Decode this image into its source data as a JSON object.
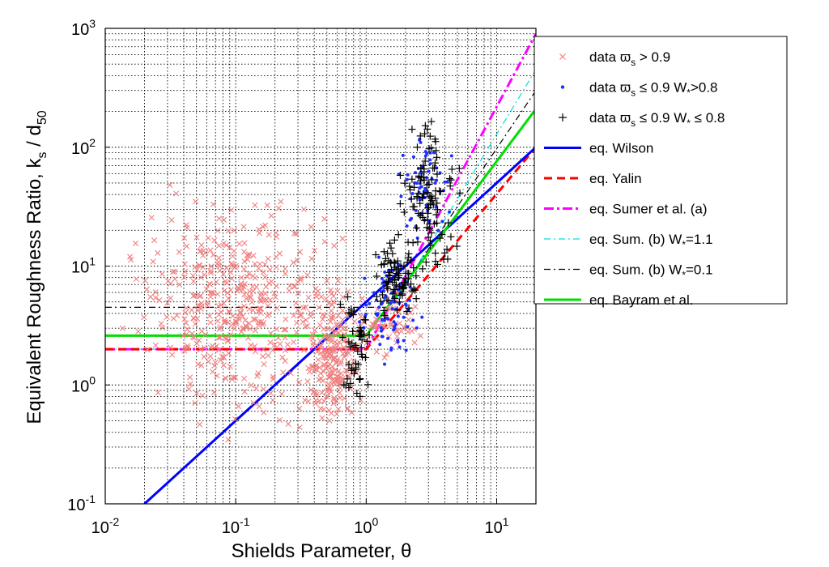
{
  "chart_data": {
    "type": "scatter",
    "x_axis": {
      "label_main": "Shields Parameter, ",
      "label_symbol": "θ",
      "scale": "log",
      "range": [
        0.01,
        20
      ],
      "ticks": [
        {
          "base": "10",
          "exp": "-2",
          "value": 0.01
        },
        {
          "base": "10",
          "exp": "-1",
          "value": 0.1
        },
        {
          "base": "10",
          "exp": "0",
          "value": 1
        },
        {
          "base": "10",
          "exp": "1",
          "value": 10
        }
      ]
    },
    "y_axis": {
      "label_main": "Equivalent Roughness Ratio, k",
      "label_sub1": "s",
      "label_mid": " / d",
      "label_sub2": "50",
      "scale": "log",
      "range": [
        0.1,
        1000
      ],
      "ticks": [
        {
          "base": "10",
          "exp": "-1",
          "value": 0.1
        },
        {
          "base": "10",
          "exp": "0",
          "value": 1
        },
        {
          "base": "10",
          "exp": "1",
          "value": 10
        },
        {
          "base": "10",
          "exp": "2",
          "value": 100
        },
        {
          "base": "10",
          "exp": "3",
          "value": 1000
        }
      ]
    },
    "grid": "dotted, major and minor",
    "legend_placement": "right, outside",
    "legend": [
      {
        "key": "red_x",
        "pre": "data ",
        "sym": "ϖ",
        "sub": "s",
        "post": " > 0.9"
      },
      {
        "key": "blue_dot",
        "pre": "data ",
        "sym": "ϖ",
        "sub": "s",
        "post": " ≤ 0.9 W",
        "sub2": "*",
        "post2": ">0.8"
      },
      {
        "key": "black_plus",
        "pre": "data ",
        "sym": "ϖ",
        "sub": "s",
        "post": " ≤ 0.9 W",
        "sub2": "*",
        "post2": " ≤ 0.8"
      },
      {
        "key": "wilson",
        "pre": "eq. Wilson"
      },
      {
        "key": "yalin",
        "pre": "eq. Yalin"
      },
      {
        "key": "sumer_a",
        "pre": "eq. Sumer et al. (a)"
      },
      {
        "key": "sumer_b11",
        "pre": "eq. Sum. (b) W",
        "sub2": "*",
        "post2": "=1.1"
      },
      {
        "key": "sumer_b01",
        "pre": "eq. Sum. (b) W",
        "sub2": "*",
        "post2": "=0.1"
      },
      {
        "key": "bayram",
        "pre": "eq. Bayram et al."
      }
    ],
    "colors": {
      "red_x": "#f08080",
      "blue_dot": "#1f2fff",
      "black_plus": "#000000",
      "wilson": "#0000ff",
      "yalin": "#ff0000",
      "sumer_a": "#ff00ff",
      "sumer_b11": "#00e0e0",
      "sumer_b01": "#000000",
      "bayram": "#00dd00"
    },
    "lines": {
      "wilson": [
        [
          0.02,
          0.1
        ],
        [
          20,
          100
        ]
      ],
      "yalin": [
        [
          0.01,
          2
        ],
        [
          1,
          2
        ],
        [
          20,
          100
        ]
      ],
      "sumer_a": [
        [
          0.01,
          2
        ],
        [
          1,
          2
        ],
        [
          20,
          900
        ]
      ],
      "sumer_b11": [
        [
          0.01,
          2
        ],
        [
          1,
          2
        ],
        [
          20,
          450
        ]
      ],
      "sumer_b01": [
        [
          0.01,
          4.5
        ],
        [
          1.5,
          4.5
        ],
        [
          20,
          300
        ]
      ],
      "bayram": [
        [
          0.01,
          2.6
        ],
        [
          1,
          2.6
        ],
        [
          20,
          210
        ]
      ]
    },
    "scatter_clusters": {
      "red_x": [
        {
          "x_range": [
            0.01,
            1
          ],
          "y_range": [
            0.3,
            70
          ],
          "n": 420
        },
        {
          "x_range": [
            0.3,
            1
          ],
          "y_range": [
            0.25,
            10
          ],
          "n": 200
        },
        {
          "x_range": [
            0.7,
            3
          ],
          "y_range": [
            1.5,
            8
          ],
          "n": 60
        }
      ],
      "blue_dot": [
        {
          "x_range": [
            0.8,
            3
          ],
          "y_range": [
            1.2,
            20
          ],
          "n": 90
        },
        {
          "x_range": [
            1.5,
            5
          ],
          "y_range": [
            10,
            220
          ],
          "n": 70
        }
      ],
      "black_plus": [
        {
          "x_range": [
            0.6,
            1.2
          ],
          "y_range": [
            0.5,
            8
          ],
          "n": 50
        },
        {
          "x_range": [
            1,
            3
          ],
          "y_range": [
            3,
            20
          ],
          "n": 80
        },
        {
          "x_range": [
            1.5,
            6
          ],
          "y_range": [
            5,
            250
          ],
          "n": 110
        }
      ]
    }
  }
}
